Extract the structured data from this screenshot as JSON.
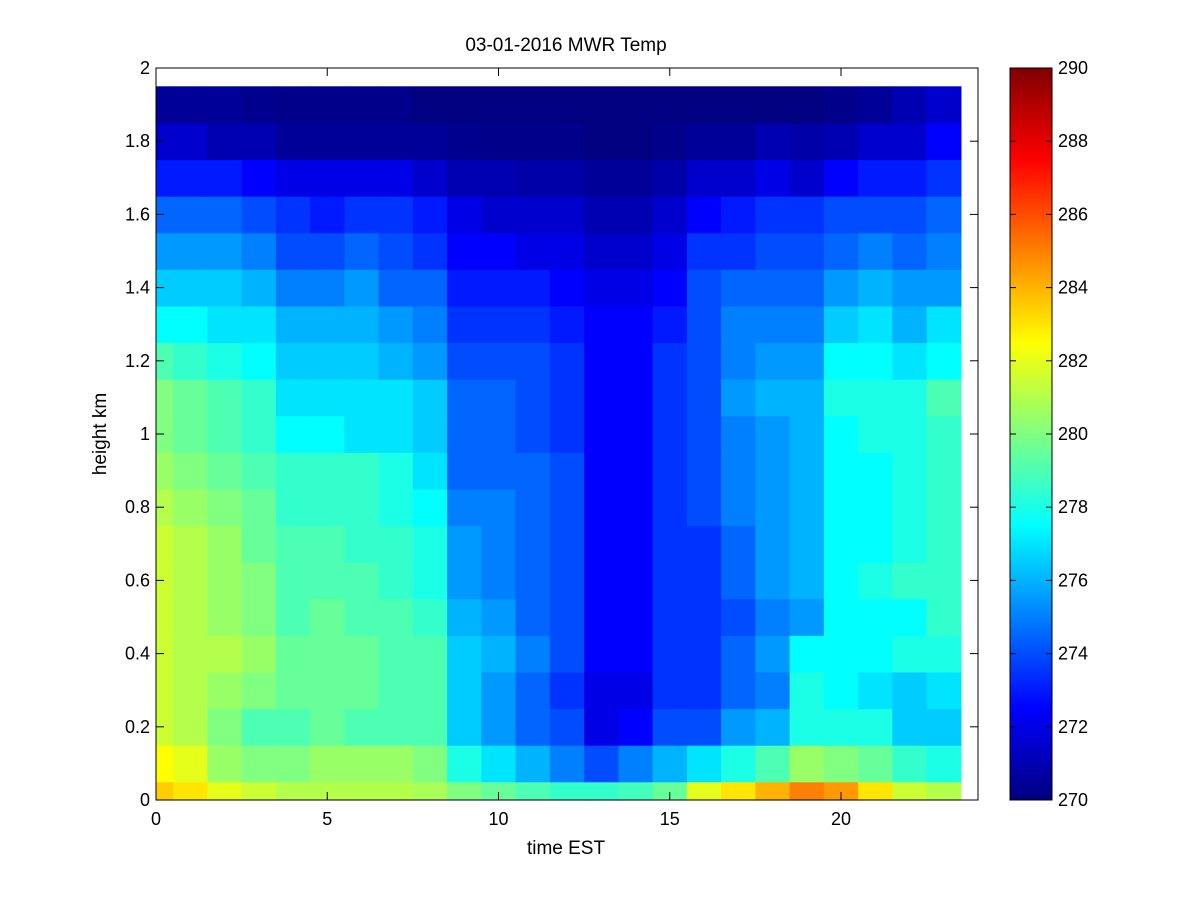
{
  "chart_data": {
    "type": "heatmap",
    "title": "03-01-2016 MWR Temp",
    "xlabel": "time EST",
    "ylabel": "height km",
    "xlim": [
      0,
      24
    ],
    "ylim": [
      0,
      2
    ],
    "x_ticks": [
      0,
      5,
      10,
      15,
      20
    ],
    "y_ticks": [
      0,
      0.2,
      0.4,
      0.6,
      0.8,
      1,
      1.2,
      1.4,
      1.6,
      1.8,
      2
    ],
    "y_tick_labels": [
      "0",
      "0.2",
      "0.4",
      "0.6",
      "0.8",
      "1",
      "1.2",
      "1.4",
      "1.6",
      "1.8",
      "2"
    ],
    "grid": false,
    "colormap": "jet",
    "clim": [
      270,
      290
    ],
    "colorbar_ticks": [
      270,
      272,
      274,
      276,
      278,
      280,
      282,
      284,
      286,
      288,
      290
    ],
    "x": [
      0,
      1,
      2,
      3,
      4,
      5,
      6,
      7,
      8,
      9,
      10,
      11,
      12,
      13,
      14,
      15,
      16,
      17,
      18,
      19,
      20,
      21,
      22,
      23
    ],
    "y": [
      0,
      0.1,
      0.2,
      0.3,
      0.4,
      0.5,
      0.6,
      0.7,
      0.8,
      0.9,
      1.0,
      1.1,
      1.2,
      1.3,
      1.4,
      1.5,
      1.6,
      1.7,
      1.8,
      1.9
    ],
    "z": [
      [
        283.5,
        283.0,
        282.0,
        281.5,
        281.0,
        281.0,
        281.0,
        281.0,
        280.8,
        280.0,
        279.5,
        279.0,
        278.5,
        278.5,
        278.8,
        279.5,
        282.0,
        283.0,
        284.0,
        285.0,
        284.5,
        283.0,
        281.5,
        281.0
      ],
      [
        282.5,
        282.0,
        280.5,
        280.0,
        280.0,
        280.5,
        280.5,
        280.5,
        280.0,
        278.0,
        277.0,
        276.0,
        275.0,
        274.0,
        275.0,
        276.0,
        277.0,
        278.0,
        279.0,
        280.5,
        280.0,
        279.5,
        278.5,
        278.0
      ],
      [
        281.5,
        281.0,
        280.0,
        279.0,
        279.0,
        279.5,
        279.0,
        279.0,
        279.0,
        276.5,
        275.5,
        274.5,
        274.0,
        272.0,
        272.5,
        274.0,
        274.0,
        275.5,
        276.0,
        278.0,
        278.0,
        278.0,
        276.5,
        276.5
      ],
      [
        281.5,
        281.0,
        280.5,
        280.0,
        279.5,
        279.5,
        279.5,
        279.0,
        279.0,
        276.5,
        275.5,
        274.5,
        273.5,
        272.0,
        272.0,
        273.5,
        273.5,
        274.5,
        275.0,
        278.0,
        277.5,
        277.0,
        276.5,
        277.0
      ],
      [
        281.5,
        281.0,
        281.0,
        280.5,
        279.5,
        279.5,
        279.5,
        279.0,
        279.0,
        276.5,
        276.0,
        275.0,
        274.0,
        272.5,
        272.5,
        273.5,
        273.5,
        274.5,
        275.5,
        277.5,
        277.5,
        277.5,
        278.0,
        278.0
      ],
      [
        281.5,
        281.0,
        280.5,
        280.0,
        279.0,
        279.5,
        279.0,
        279.0,
        278.5,
        276.0,
        275.5,
        274.5,
        274.0,
        272.5,
        272.5,
        273.5,
        273.5,
        274.0,
        275.0,
        275.5,
        277.5,
        277.5,
        277.5,
        278.5
      ],
      [
        281.5,
        281.0,
        280.5,
        280.0,
        279.0,
        279.0,
        279.0,
        278.5,
        278.0,
        275.5,
        275.0,
        274.5,
        274.0,
        272.5,
        272.5,
        273.5,
        273.5,
        274.5,
        275.5,
        276.0,
        277.5,
        278.0,
        278.5,
        278.5
      ],
      [
        281.5,
        281.0,
        280.5,
        279.5,
        279.0,
        279.0,
        278.5,
        278.5,
        278.0,
        275.5,
        275.0,
        274.5,
        274.0,
        272.5,
        272.5,
        273.5,
        273.5,
        274.5,
        275.5,
        276.0,
        277.5,
        277.5,
        278.0,
        278.5
      ],
      [
        281.0,
        280.5,
        280.0,
        279.5,
        278.5,
        278.5,
        278.5,
        278.0,
        277.5,
        275.0,
        275.0,
        274.5,
        274.0,
        272.5,
        272.5,
        273.5,
        274.0,
        275.0,
        275.5,
        276.0,
        277.5,
        277.5,
        278.0,
        278.5
      ],
      [
        280.5,
        280.0,
        279.5,
        279.0,
        278.5,
        278.5,
        278.5,
        278.0,
        277.0,
        274.5,
        274.5,
        274.5,
        274.0,
        272.5,
        272.5,
        273.5,
        274.0,
        275.0,
        275.5,
        276.0,
        277.5,
        277.5,
        278.0,
        278.5
      ],
      [
        280.0,
        279.5,
        279.0,
        278.5,
        277.5,
        277.5,
        277.0,
        277.0,
        276.5,
        274.5,
        274.5,
        274.0,
        273.5,
        272.5,
        272.5,
        273.5,
        274.0,
        275.0,
        275.5,
        276.0,
        277.5,
        278.0,
        278.0,
        278.5
      ],
      [
        280.0,
        279.5,
        279.0,
        278.5,
        277.0,
        277.0,
        277.0,
        277.0,
        276.5,
        274.5,
        274.5,
        274.0,
        273.5,
        272.5,
        272.5,
        273.5,
        274.0,
        275.5,
        276.0,
        276.0,
        278.0,
        278.0,
        278.0,
        279.0
      ],
      [
        279.0,
        278.5,
        278.0,
        277.5,
        276.5,
        276.5,
        276.5,
        276.0,
        275.5,
        274.0,
        274.0,
        274.0,
        273.5,
        272.5,
        272.5,
        273.5,
        274.0,
        275.0,
        275.5,
        275.5,
        277.5,
        277.5,
        277.0,
        277.5
      ],
      [
        277.5,
        277.5,
        277.0,
        277.0,
        276.0,
        276.0,
        276.0,
        275.5,
        275.0,
        273.5,
        273.5,
        273.5,
        273.0,
        272.5,
        272.5,
        273.0,
        274.0,
        275.0,
        275.0,
        275.0,
        276.5,
        277.0,
        276.0,
        277.0
      ],
      [
        276.5,
        276.5,
        276.5,
        276.0,
        275.0,
        275.0,
        275.5,
        274.5,
        274.5,
        273.0,
        273.0,
        273.0,
        272.5,
        272.0,
        272.0,
        272.5,
        274.0,
        274.5,
        274.5,
        274.5,
        275.5,
        276.0,
        275.5,
        275.5
      ],
      [
        275.5,
        275.5,
        275.5,
        275.0,
        274.0,
        274.0,
        274.5,
        274.0,
        273.5,
        272.5,
        272.5,
        272.0,
        272.0,
        271.5,
        271.5,
        272.0,
        273.5,
        273.5,
        274.0,
        274.0,
        274.5,
        275.0,
        274.5,
        275.0
      ],
      [
        274.5,
        274.5,
        274.5,
        274.0,
        273.5,
        273.0,
        273.5,
        273.5,
        273.0,
        272.0,
        271.5,
        271.5,
        271.5,
        271.0,
        271.0,
        271.5,
        272.5,
        273.0,
        273.5,
        273.5,
        274.0,
        274.0,
        274.0,
        274.5
      ],
      [
        273.0,
        273.0,
        273.0,
        272.5,
        272.0,
        272.0,
        272.0,
        272.0,
        271.5,
        271.0,
        271.0,
        270.8,
        270.8,
        270.5,
        270.5,
        270.8,
        271.5,
        271.5,
        272.0,
        271.5,
        272.5,
        273.0,
        273.0,
        273.5
      ],
      [
        271.5,
        271.5,
        271.0,
        271.0,
        270.5,
        270.5,
        270.5,
        270.5,
        270.5,
        270.3,
        270.2,
        270.2,
        270.2,
        270.0,
        270.0,
        270.2,
        270.5,
        270.5,
        271.0,
        270.8,
        271.0,
        271.5,
        271.5,
        272.5
      ],
      [
        270.5,
        270.5,
        270.5,
        270.3,
        270.2,
        270.2,
        270.2,
        270.2,
        270.0,
        270.0,
        270.0,
        270.0,
        270.0,
        270.0,
        270.0,
        270.0,
        270.0,
        270.0,
        270.0,
        270.0,
        270.2,
        270.5,
        271.0,
        271.5
      ]
    ]
  }
}
